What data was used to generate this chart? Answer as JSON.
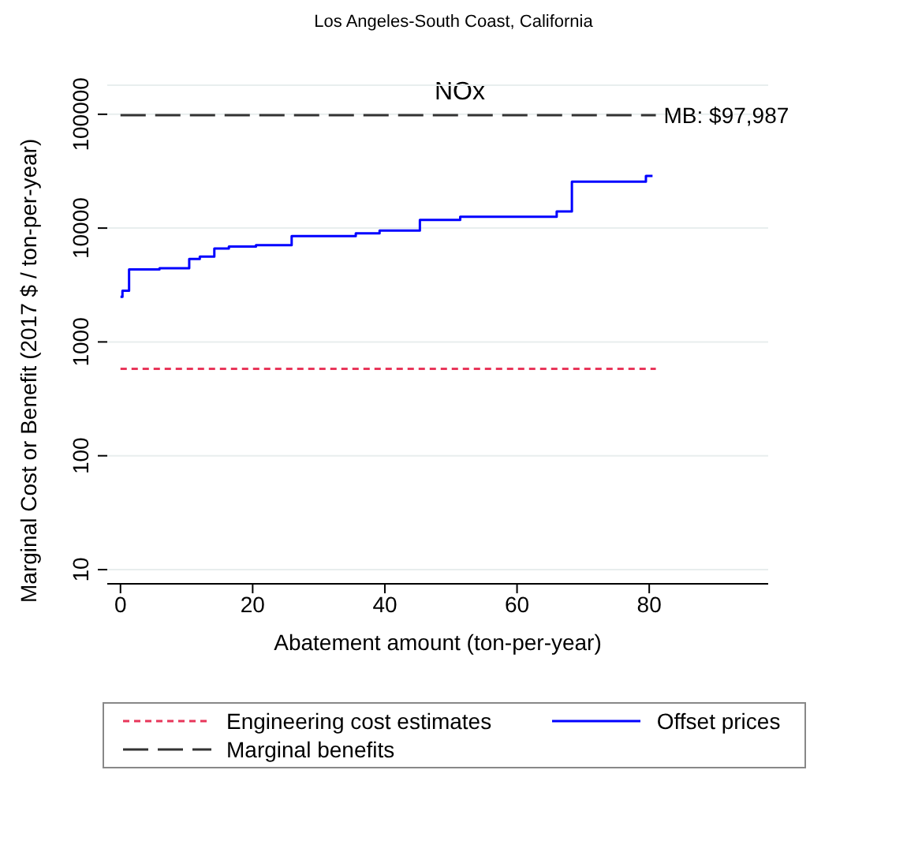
{
  "chart_data": {
    "type": "step",
    "title": "Los Angeles-South Coast, California",
    "subtitle": "NOx",
    "xlabel": "Abatement amount (ton-per-year)",
    "ylabel": "Marginal Cost or Benefit (2017 $ / ton-per-year)",
    "log": "y",
    "xlim": [
      -2,
      98
    ],
    "xticks": [
      0,
      20,
      40,
      60,
      80
    ],
    "ylim": [
      7.5,
      180000
    ],
    "yticks": [
      10,
      100,
      1000,
      10000,
      100000
    ],
    "grid": "y",
    "legend": "bottom",
    "marker": "none",
    "series": [
      {
        "name": "Engineering cost estimates",
        "color": "#e8365a",
        "line_style": "dotted",
        "x": [
          0,
          81
        ],
        "values": [
          580,
          580
        ]
      },
      {
        "name": "Offset prices",
        "color": "#0000ff",
        "line_style": "solid",
        "x": [
          0,
          0.3,
          1.3,
          5.9,
          10.4,
          12.0,
          14.2,
          16.4,
          20.5,
          25.9,
          35.6,
          39.2,
          45.3,
          51.4,
          66.0,
          68.3,
          79.5,
          80.5
        ],
        "values": [
          2490,
          2820,
          4340,
          4440,
          5350,
          5620,
          6610,
          6880,
          7080,
          8490,
          8990,
          9530,
          11790,
          12590,
          14000,
          25600,
          28700,
          28700
        ]
      },
      {
        "name": "Marginal benefits",
        "color": "#333333",
        "line_style": "dashed",
        "x": [
          0,
          81
        ],
        "values": [
          97987,
          97987
        ]
      }
    ],
    "annotations": [
      {
        "text": "MB: $97,987",
        "x": 81,
        "y": 97987
      }
    ]
  }
}
